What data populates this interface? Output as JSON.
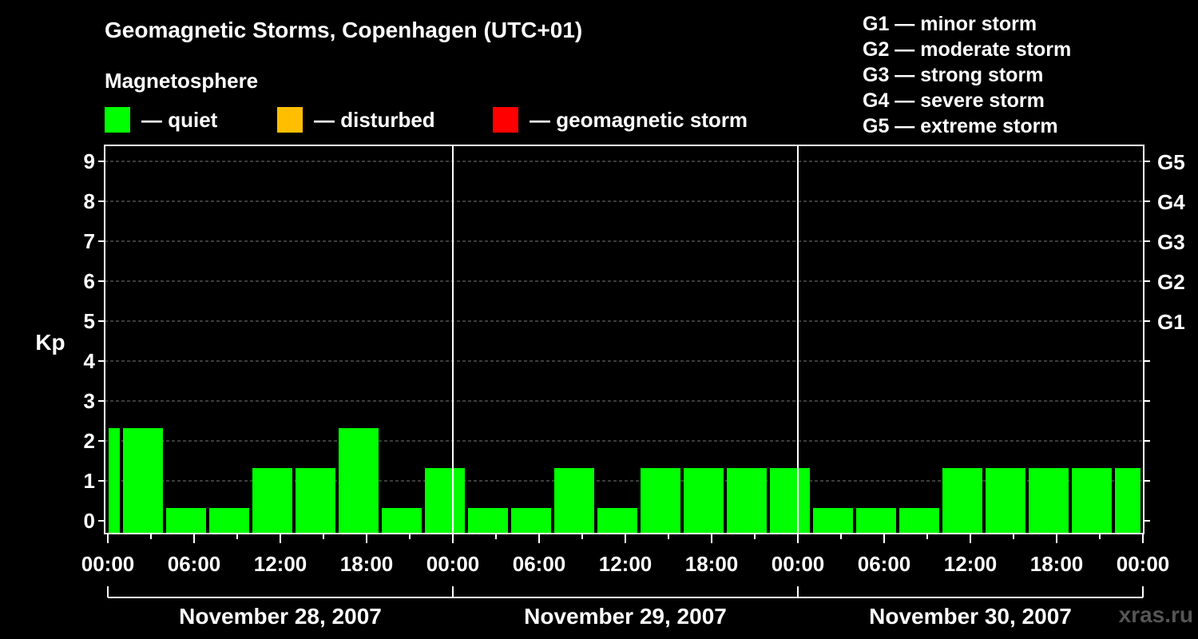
{
  "chart_data": {
    "type": "bar",
    "title": "Geomagnetic Storms, Copenhagen (UTC+01)",
    "subtitle": "Magnetosphere",
    "ylabel": "Kp",
    "ylim": [
      0,
      9
    ],
    "y_ticks": [
      "0",
      "1",
      "2",
      "3",
      "4",
      "5",
      "6",
      "7",
      "8",
      "9"
    ],
    "right_axis_ticks": [
      {
        "label": "G1",
        "kp": 5
      },
      {
        "label": "G2",
        "kp": 6
      },
      {
        "label": "G3",
        "kp": 7
      },
      {
        "label": "G4",
        "kp": 8
      },
      {
        "label": "G5",
        "kp": 9
      }
    ],
    "x_tick_labels": [
      "00:00",
      "06:00",
      "12:00",
      "18:00",
      "00:00",
      "06:00",
      "12:00",
      "18:00",
      "00:00",
      "06:00",
      "12:00",
      "18:00",
      "00:00"
    ],
    "days": [
      "November 28, 2007",
      "November 29, 2007",
      "November 30, 2007"
    ],
    "interval_hours": 3,
    "start_hour": -2,
    "hours_total": 72,
    "series": [
      {
        "name": "Kp",
        "values": [
          2,
          2,
          0,
          0,
          1,
          1,
          2,
          0,
          1,
          0,
          0,
          1,
          0,
          1,
          1,
          1,
          1,
          0,
          0,
          0,
          1,
          1,
          1,
          1,
          1
        ]
      }
    ],
    "colors": {
      "quiet": "#00ff00",
      "disturbed": "#ffbf00",
      "storm": "#ff0000"
    }
  },
  "legend": [
    {
      "label": "— quiet",
      "color": "#00ff00"
    },
    {
      "label": "— disturbed",
      "color": "#ffbf00"
    },
    {
      "label": "— geomagnetic storm",
      "color": "#ff0000"
    }
  ],
  "storm_scale": [
    "G1 — minor storm",
    "G2 — moderate storm",
    "G3 — strong storm",
    "G4 — severe storm",
    "G5 — extreme storm"
  ],
  "watermark": "xras.ru"
}
